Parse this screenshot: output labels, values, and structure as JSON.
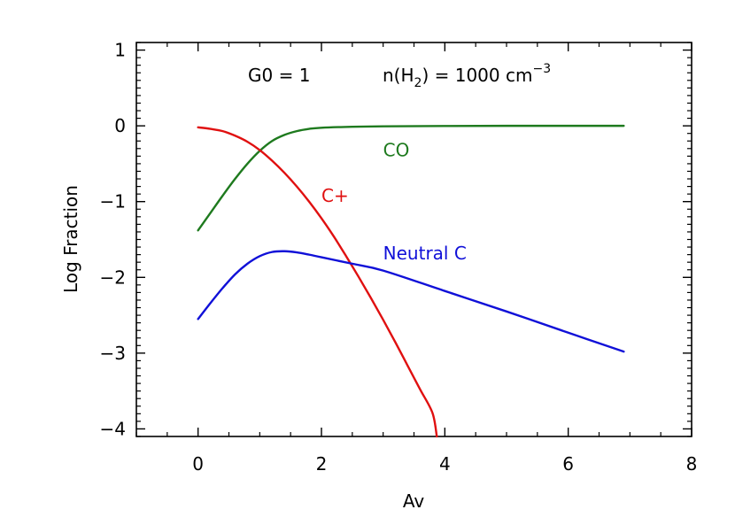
{
  "chart_data": {
    "type": "line",
    "title": "",
    "xlabel": "Av",
    "ylabel": "Log Fraction",
    "xlim": [
      -1,
      8
    ],
    "ylim": [
      -4.1,
      1.1
    ],
    "xticks": [
      0,
      2,
      4,
      6,
      8
    ],
    "xtick_labels": [
      "0",
      "2",
      "4",
      "6",
      "8"
    ],
    "yticks": [
      1,
      0,
      -1,
      -2,
      -3,
      -4
    ],
    "ytick_labels": [
      "1",
      "0",
      "−1",
      "−2",
      "−3",
      "−4"
    ],
    "grid": false,
    "annotation": {
      "g0_text": "G0 = 1",
      "density_prefix": "n(H",
      "density_sub": "2",
      "density_mid": ") = 1000 cm",
      "density_sup": "−3"
    },
    "series": [
      {
        "name": "CO",
        "color": "#1e7a1e",
        "label_at": [
          3,
          -0.32
        ],
        "x": [
          0,
          0.2,
          0.4,
          0.6,
          0.8,
          1.0,
          1.2,
          1.4,
          1.6,
          1.8,
          2.0,
          2.5,
          3.0,
          4.0,
          5.0,
          6.0,
          6.9
        ],
        "y": [
          -1.38,
          -1.15,
          -0.92,
          -0.7,
          -0.5,
          -0.33,
          -0.2,
          -0.12,
          -0.07,
          -0.04,
          -0.025,
          -0.012,
          -0.006,
          -0.002,
          0.0,
          0.0,
          0.0
        ]
      },
      {
        "name": "C+",
        "color": "#e01010",
        "label_at": [
          2,
          -0.92
        ],
        "x": [
          0,
          0.2,
          0.4,
          0.6,
          0.8,
          1.0,
          1.2,
          1.4,
          1.6,
          1.8,
          2.0,
          2.2,
          2.4,
          2.6,
          2.8,
          3.0,
          3.2,
          3.4,
          3.6,
          3.8,
          3.87
        ],
        "y": [
          -0.02,
          -0.04,
          -0.07,
          -0.13,
          -0.21,
          -0.32,
          -0.46,
          -0.62,
          -0.8,
          -1.0,
          -1.22,
          -1.46,
          -1.72,
          -1.99,
          -2.27,
          -2.56,
          -2.86,
          -3.17,
          -3.48,
          -3.79,
          -4.1
        ]
      },
      {
        "name": "Neutral C",
        "color": "#1010d8",
        "label_at": [
          3,
          -1.68
        ],
        "x": [
          0,
          0.2,
          0.4,
          0.6,
          0.8,
          1.0,
          1.2,
          1.4,
          1.6,
          1.8,
          2.0,
          2.5,
          3.0,
          4.0,
          5.0,
          6.0,
          6.9
        ],
        "y": [
          -2.55,
          -2.34,
          -2.14,
          -1.96,
          -1.82,
          -1.72,
          -1.665,
          -1.655,
          -1.67,
          -1.7,
          -1.735,
          -1.82,
          -1.91,
          -2.18,
          -2.45,
          -2.73,
          -2.98
        ]
      }
    ]
  }
}
